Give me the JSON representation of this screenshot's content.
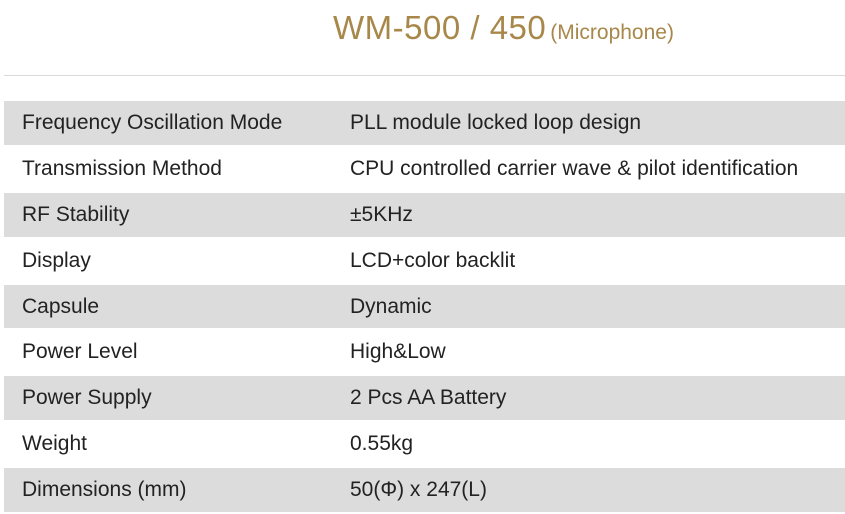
{
  "header": {
    "title_main": "WM-500 / 450",
    "title_sub": "(Microphone)",
    "accent_color": "#a8884a"
  },
  "specs": [
    {
      "label": "Frequency Oscillation Mode",
      "value": "PLL module locked loop design"
    },
    {
      "label": "Transmission Method",
      "value": "CPU controlled carrier wave & pilot identification"
    },
    {
      "label": "RF Stability",
      "value": "±5KHz"
    },
    {
      "label": "Display",
      "value": "LCD+color backlit"
    },
    {
      "label": "Capsule",
      "value": "Dynamic"
    },
    {
      "label": "Power Level",
      "value": "High&Low"
    },
    {
      "label": "Power Supply",
      "value": "2 Pcs AA Battery"
    },
    {
      "label": "Weight",
      "value": "0.55kg"
    },
    {
      "label": "Dimensions (mm)",
      "value": "50(Φ) x 247(L)"
    }
  ]
}
